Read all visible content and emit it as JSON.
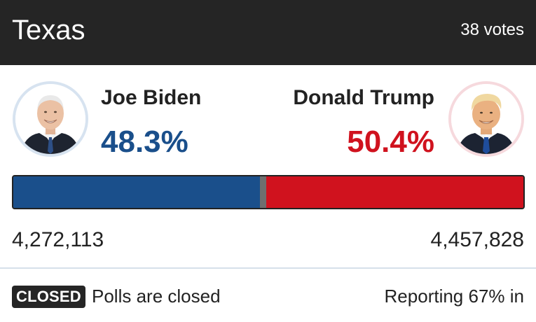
{
  "header": {
    "state": "Texas",
    "electoral_votes": "38 votes"
  },
  "candidates": {
    "dem": {
      "name": "Joe Biden",
      "percent_label": "48.3%",
      "percent": 48.3,
      "votes": "4,272,113",
      "color": "#1a4f8b",
      "portrait": "joe-biden-portrait"
    },
    "rep": {
      "name": "Donald Trump",
      "percent_label": "50.4%",
      "percent": 50.4,
      "votes": "4,457,828",
      "color": "#d0121e",
      "portrait": "donald-trump-portrait"
    }
  },
  "footer": {
    "badge": "CLOSED",
    "status": "Polls are closed",
    "reporting": "Reporting 67% in"
  }
}
